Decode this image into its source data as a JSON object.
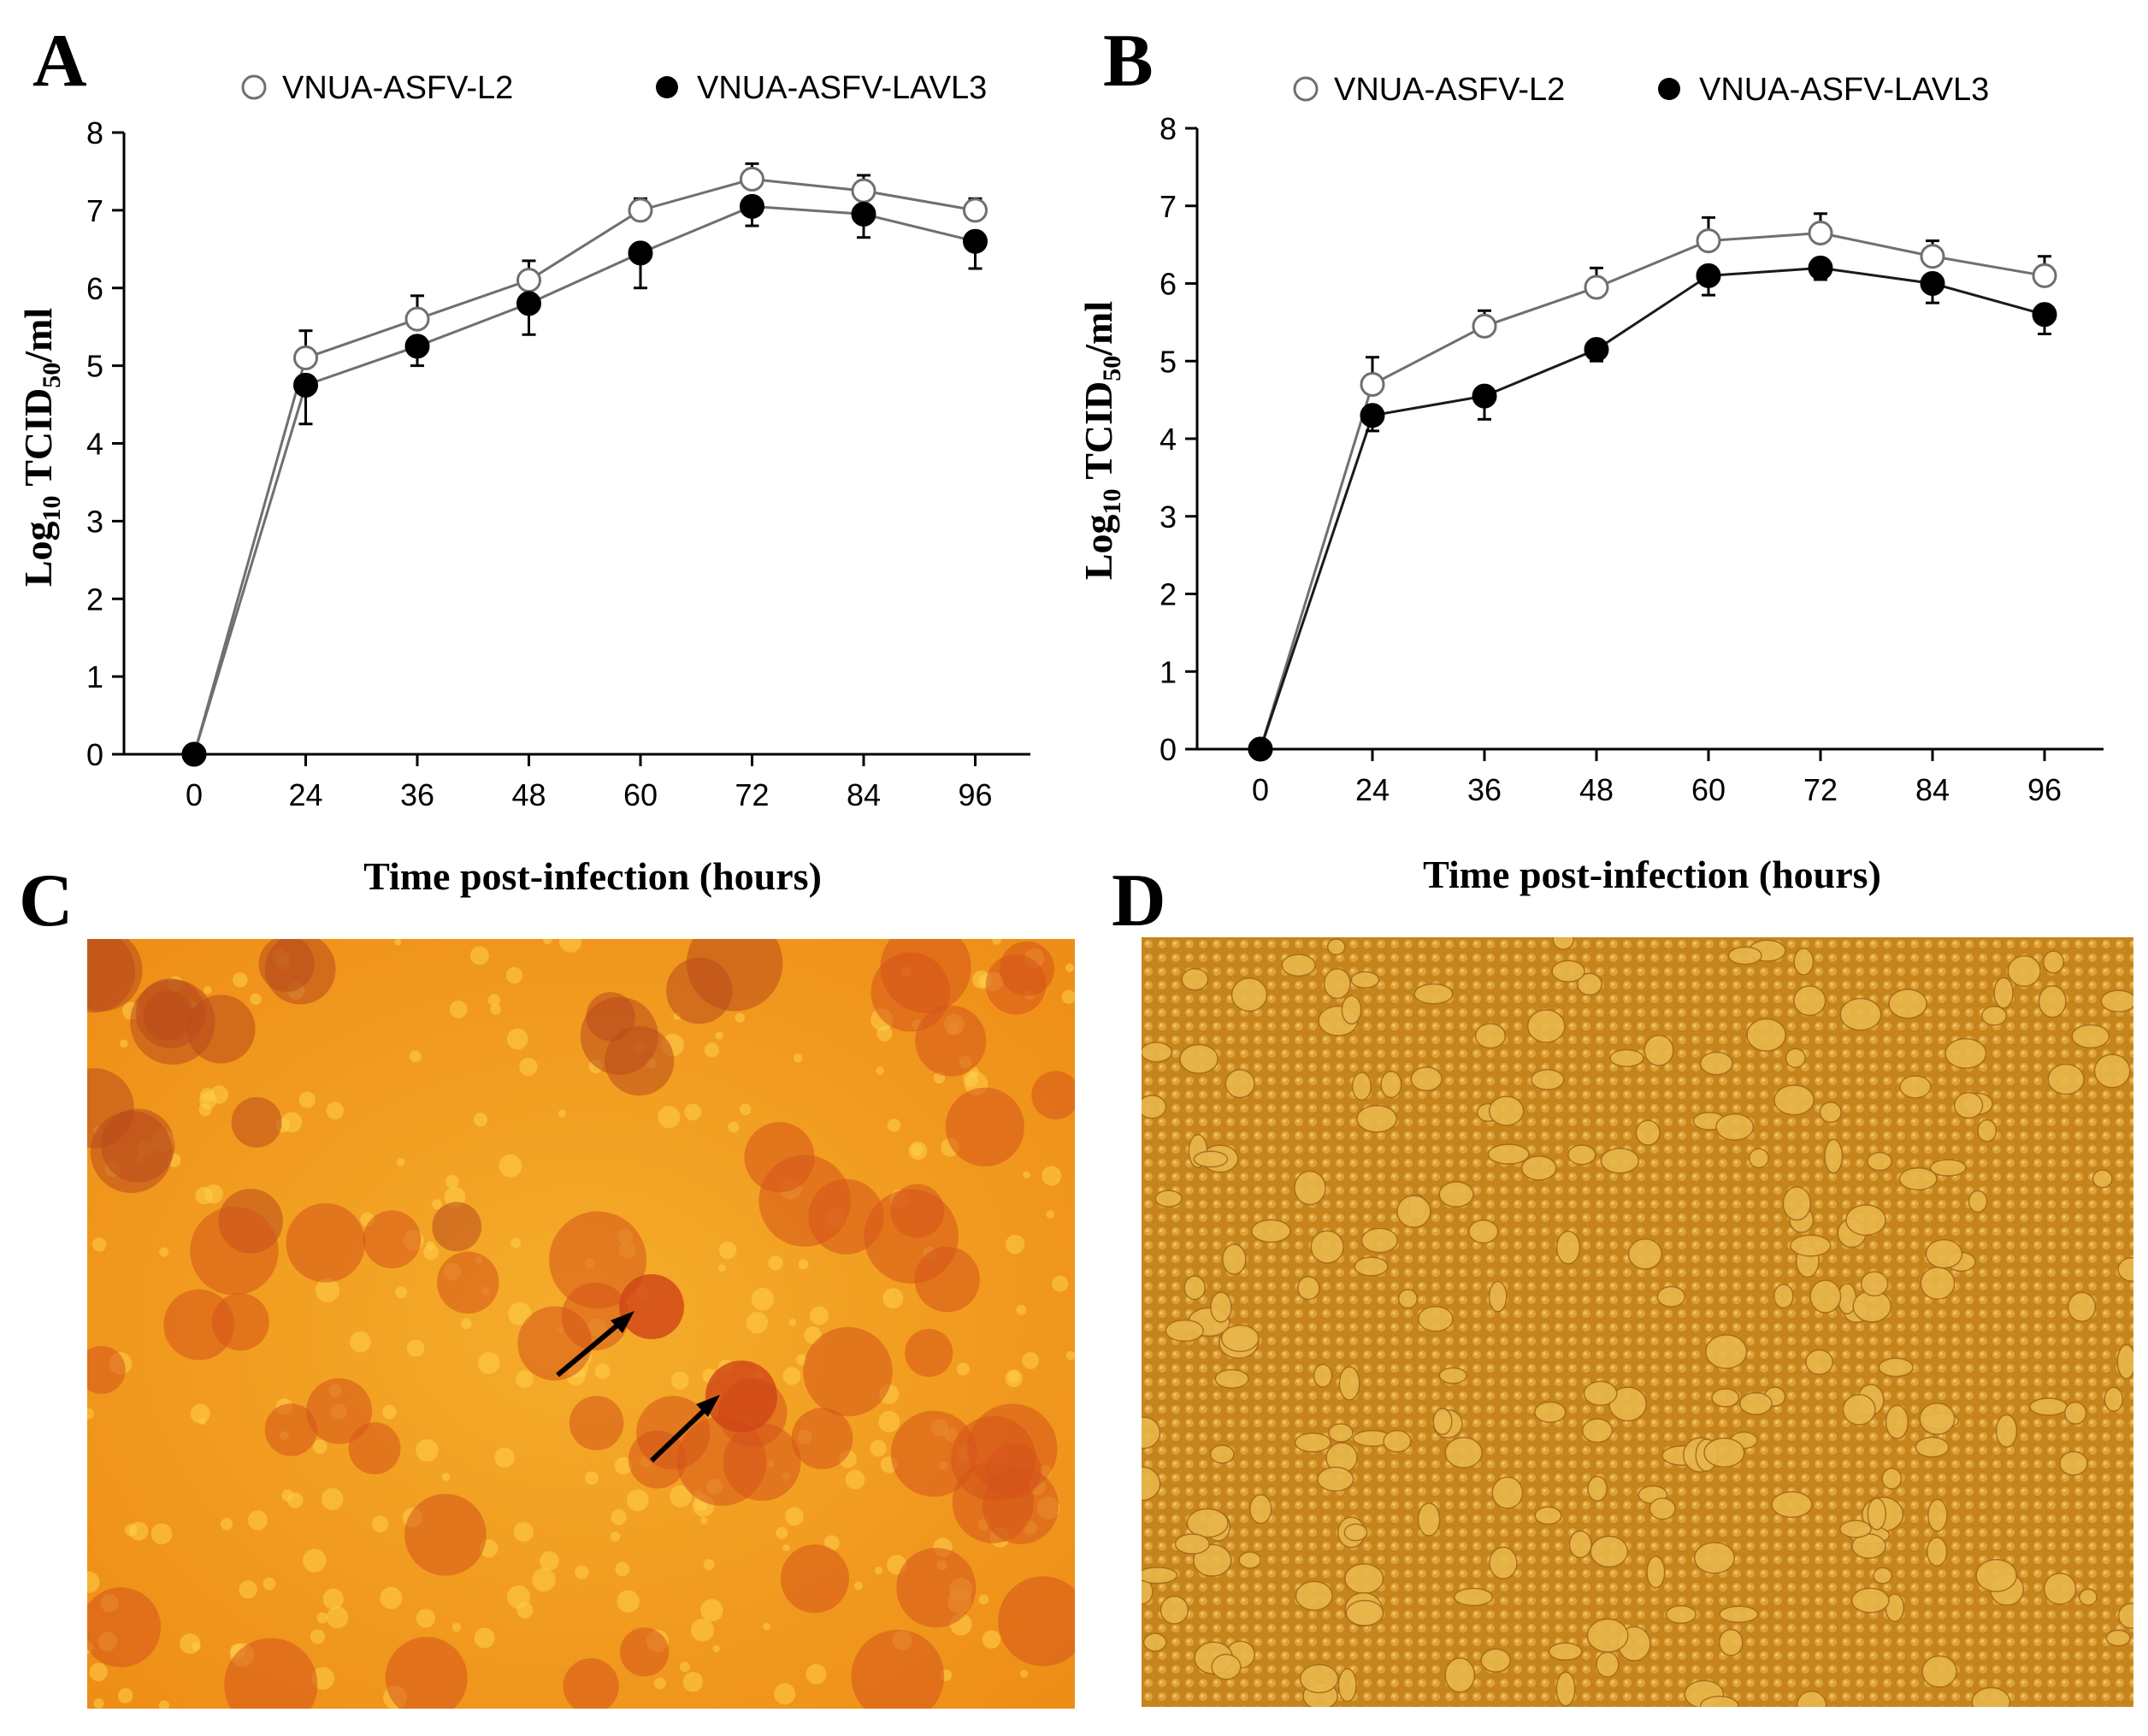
{
  "panels": {
    "a_letter": "A",
    "b_letter": "B",
    "c_letter": "C",
    "d_letter": "D"
  },
  "chart_data": [
    {
      "panel": "A",
      "type": "line",
      "x": [
        0,
        24,
        36,
        48,
        60,
        72,
        84,
        96
      ],
      "xlabel": "Time post-infection (hours)",
      "ylabel": "Log10 TCID50/ml",
      "ylabel_parts": {
        "main": "Log",
        "sub1": "10",
        "mid": " TCID",
        "sub2": "50",
        "end": "/ml"
      },
      "ylim": [
        0,
        8
      ],
      "yticks": [
        0,
        1,
        2,
        3,
        4,
        5,
        6,
        7,
        8
      ],
      "legend_position": "top",
      "series": [
        {
          "name": "VNUA-ASFV-L2",
          "marker": "open-circle",
          "values": [
            0,
            5.1,
            5.6,
            6.1,
            7.0,
            7.4,
            7.25,
            7.0
          ],
          "errors": [
            0,
            0.35,
            0.3,
            0.25,
            0.15,
            0.2,
            0.2,
            0.15
          ]
        },
        {
          "name": "VNUA-ASFV-LAVL3",
          "marker": "filled-circle",
          "values": [
            0,
            4.75,
            5.25,
            5.8,
            6.45,
            7.05,
            6.95,
            6.6
          ],
          "errors": [
            0,
            0.5,
            0.25,
            0.4,
            0.45,
            0.25,
            0.3,
            0.35
          ]
        }
      ]
    },
    {
      "panel": "B",
      "type": "line",
      "x": [
        0,
        24,
        36,
        48,
        60,
        72,
        84,
        96
      ],
      "xlabel": "Time post-infection (hours)",
      "ylabel": "Log10 TCID50/ml",
      "ylabel_parts": {
        "main": "Log",
        "sub1": "10",
        "mid": " TCID",
        "sub2": "50",
        "end": "/ml"
      },
      "ylim": [
        0,
        8
      ],
      "yticks": [
        0,
        1,
        2,
        3,
        4,
        5,
        6,
        7,
        8
      ],
      "legend_position": "top",
      "series": [
        {
          "name": "VNUA-ASFV-L2",
          "marker": "open-circle",
          "values": [
            0,
            4.7,
            5.45,
            5.95,
            6.55,
            6.65,
            6.35,
            6.1
          ],
          "errors": [
            0,
            0.35,
            0.2,
            0.25,
            0.3,
            0.25,
            0.2,
            0.25
          ]
        },
        {
          "name": "VNUA-ASFV-LAVL3",
          "marker": "filled-circle",
          "values": [
            0,
            4.3,
            4.55,
            5.15,
            6.1,
            6.2,
            6.0,
            5.6
          ],
          "errors": [
            0,
            0.2,
            0.3,
            0.15,
            0.25,
            0.15,
            0.25,
            0.25
          ]
        }
      ]
    }
  ],
  "colors": {
    "line": "#6f6f6f",
    "line_dark": "#1a1a1a",
    "marker_fill_open": "#ffffff",
    "marker_fill_closed": "#000000",
    "micro_c_base": "#f4a21c",
    "micro_c_spot": "#d5541a",
    "micro_d_base": "#c98a1f",
    "micro_d_cell": "#e8b64a"
  }
}
